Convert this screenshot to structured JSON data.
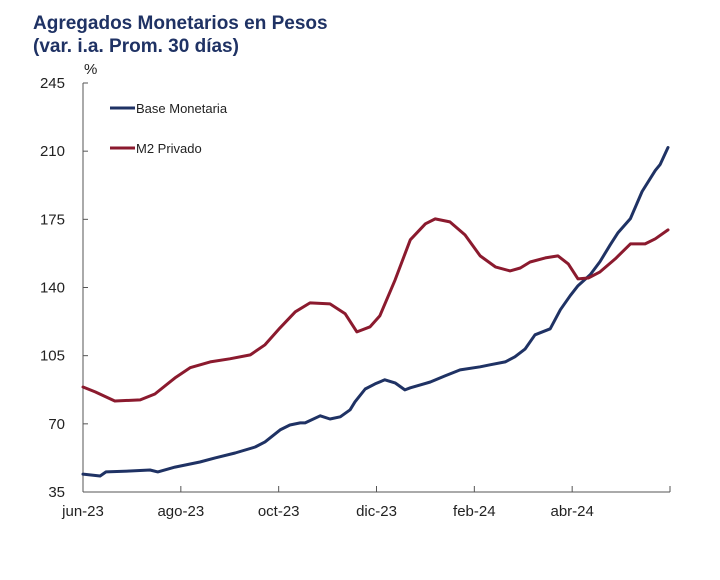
{
  "chart_data": {
    "type": "line",
    "title": "Agregados Monetarios en Pesos",
    "subtitle": "(var. i.a. Prom. 30 días)",
    "ylabel": "%",
    "xlabel": "",
    "ylim": [
      35,
      245
    ],
    "yticks": [
      35,
      70,
      105,
      140,
      175,
      210,
      245
    ],
    "xlim_months": [
      0,
      12
    ],
    "xticks": [
      {
        "label": "jun-23",
        "month": 0
      },
      {
        "label": "ago-23",
        "month": 2
      },
      {
        "label": "oct-23",
        "month": 4
      },
      {
        "label": "dic-23",
        "month": 6
      },
      {
        "label": "feb-24",
        "month": 8
      },
      {
        "label": "abr-24",
        "month": 10
      },
      {
        "label": "",
        "month": 12
      }
    ],
    "grid": false,
    "legend_position": "top-left",
    "series": [
      {
        "name": "Base Monetaria",
        "color": "#1f3264",
        "x_months": [
          0,
          0.35,
          0.47,
          0.96,
          1.37,
          1.53,
          1.88,
          2.39,
          2.7,
          3.11,
          3.52,
          3.72,
          4.03,
          4.23,
          4.44,
          4.54,
          4.85,
          5.05,
          5.26,
          5.46,
          5.56,
          5.77,
          5.97,
          6.17,
          6.38,
          6.58,
          6.69,
          7.1,
          7.4,
          7.71,
          8.12,
          8.32,
          8.63,
          8.83,
          9.04,
          9.24,
          9.55,
          9.76,
          9.96,
          10.12,
          10.37,
          10.57,
          10.78,
          10.94,
          11.19,
          11.43,
          11.7,
          11.8,
          11.96
        ],
        "values": [
          44.2,
          43.2,
          45.3,
          45.8,
          46.3,
          45.3,
          47.8,
          50.4,
          52.5,
          55.0,
          58.1,
          60.7,
          66.9,
          69.4,
          70.5,
          70.5,
          74.1,
          72.5,
          73.6,
          77.2,
          81.3,
          87.9,
          90.5,
          92.6,
          91.0,
          87.4,
          88.5,
          91.5,
          94.6,
          97.7,
          99.3,
          100.3,
          101.8,
          104.4,
          108.5,
          115.7,
          118.8,
          128.6,
          135.8,
          140.9,
          146.6,
          153.3,
          162.0,
          168.2,
          175.4,
          189.3,
          200.1,
          203.2,
          211.9
        ]
      },
      {
        "name": "M2 Privado",
        "color": "#8b1a2e",
        "x_months": [
          0,
          0.25,
          0.65,
          1.17,
          1.47,
          1.88,
          2.19,
          2.6,
          3.0,
          3.42,
          3.72,
          4.03,
          4.34,
          4.64,
          5.05,
          5.36,
          5.6,
          5.87,
          6.07,
          6.38,
          6.69,
          7.0,
          7.2,
          7.5,
          7.81,
          8.12,
          8.43,
          8.73,
          8.94,
          9.14,
          9.45,
          9.71,
          9.92,
          10.12,
          10.33,
          10.57,
          10.88,
          11.19,
          11.49,
          11.7,
          11.96
        ],
        "values": [
          88.9,
          86.4,
          81.7,
          82.3,
          85.3,
          93.6,
          98.8,
          101.8,
          103.4,
          105.4,
          110.6,
          119.3,
          127.5,
          132.1,
          131.6,
          126.5,
          117.2,
          119.8,
          125.5,
          143.9,
          164.5,
          172.7,
          175.2,
          173.7,
          167.0,
          156.2,
          150.6,
          148.5,
          150.0,
          153.1,
          155.2,
          156.2,
          152.1,
          144.4,
          144.9,
          148.0,
          154.7,
          162.4,
          162.4,
          165.0,
          169.6
        ]
      }
    ]
  }
}
